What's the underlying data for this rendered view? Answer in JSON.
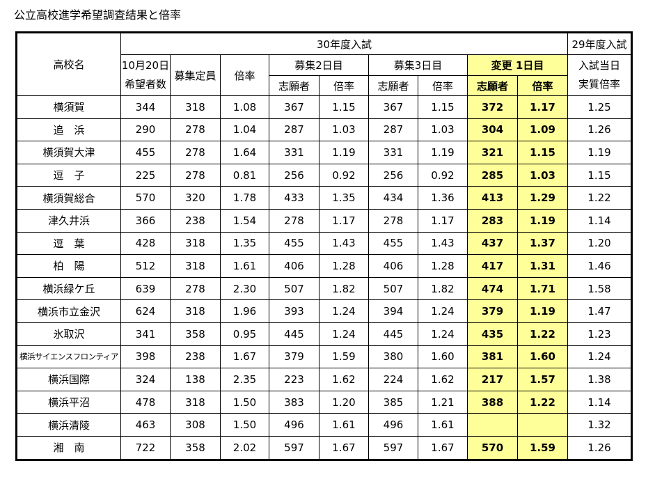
{
  "title": "公立高校進学希望調査結果と倍率",
  "header": {
    "year30": "30年度入試",
    "year29": "29年度入試",
    "school_name": "高校名",
    "oct20_line1": "10月20日",
    "oct20_line2": "希望者数",
    "capacity": "募集定員",
    "ratio": "倍率",
    "day2": "募集2日目",
    "day3": "募集3日目",
    "change_day1": "変更 1日目",
    "applicants": "志願者",
    "ratio_short": "倍率",
    "exam_day_line1": "入試当日",
    "exam_day_line2": "実質倍率"
  },
  "colors": {
    "highlight": "#ffff99",
    "border": "#000000"
  },
  "rows": [
    {
      "school": "横須賀",
      "hope": "344",
      "cap": "318",
      "ratio": "1.08",
      "d2_app": "367",
      "d2_ratio": "1.15",
      "d3_app": "367",
      "d3_ratio": "1.15",
      "ch_app": "372",
      "ch_ratio": "1.17",
      "real": "1.25"
    },
    {
      "school": "追　浜",
      "hope": "290",
      "cap": "278",
      "ratio": "1.04",
      "d2_app": "287",
      "d2_ratio": "1.03",
      "d3_app": "287",
      "d3_ratio": "1.03",
      "ch_app": "304",
      "ch_ratio": "1.09",
      "real": "1.26"
    },
    {
      "school": "横須賀大津",
      "hope": "455",
      "cap": "278",
      "ratio": "1.64",
      "d2_app": "331",
      "d2_ratio": "1.19",
      "d3_app": "331",
      "d3_ratio": "1.19",
      "ch_app": "321",
      "ch_ratio": "1.15",
      "real": "1.19"
    },
    {
      "school": "逗　子",
      "hope": "225",
      "cap": "278",
      "ratio": "0.81",
      "d2_app": "256",
      "d2_ratio": "0.92",
      "d3_app": "256",
      "d3_ratio": "0.92",
      "ch_app": "285",
      "ch_ratio": "1.03",
      "real": "1.15"
    },
    {
      "school": "横須賀総合",
      "hope": "570",
      "cap": "320",
      "ratio": "1.78",
      "d2_app": "433",
      "d2_ratio": "1.35",
      "d3_app": "434",
      "d3_ratio": "1.36",
      "ch_app": "413",
      "ch_ratio": "1.29",
      "real": "1.22"
    },
    {
      "school": "津久井浜",
      "hope": "366",
      "cap": "238",
      "ratio": "1.54",
      "d2_app": "278",
      "d2_ratio": "1.17",
      "d3_app": "278",
      "d3_ratio": "1.17",
      "ch_app": "283",
      "ch_ratio": "1.19",
      "real": "1.14"
    },
    {
      "school": "逗　葉",
      "hope": "428",
      "cap": "318",
      "ratio": "1.35",
      "d2_app": "455",
      "d2_ratio": "1.43",
      "d3_app": "455",
      "d3_ratio": "1.43",
      "ch_app": "437",
      "ch_ratio": "1.37",
      "real": "1.20"
    },
    {
      "school": "柏　陽",
      "hope": "512",
      "cap": "318",
      "ratio": "1.61",
      "d2_app": "406",
      "d2_ratio": "1.28",
      "d3_app": "406",
      "d3_ratio": "1.28",
      "ch_app": "417",
      "ch_ratio": "1.31",
      "real": "1.46"
    },
    {
      "school": "横浜緑ケ丘",
      "hope": "639",
      "cap": "278",
      "ratio": "2.30",
      "d2_app": "507",
      "d2_ratio": "1.82",
      "d3_app": "507",
      "d3_ratio": "1.82",
      "ch_app": "474",
      "ch_ratio": "1.71",
      "real": "1.58"
    },
    {
      "school": "横浜市立金沢",
      "hope": "624",
      "cap": "318",
      "ratio": "1.96",
      "d2_app": "393",
      "d2_ratio": "1.24",
      "d3_app": "394",
      "d3_ratio": "1.24",
      "ch_app": "379",
      "ch_ratio": "1.19",
      "real": "1.47"
    },
    {
      "school": "氷取沢",
      "hope": "341",
      "cap": "358",
      "ratio": "0.95",
      "d2_app": "445",
      "d2_ratio": "1.24",
      "d3_app": "445",
      "d3_ratio": "1.24",
      "ch_app": "435",
      "ch_ratio": "1.22",
      "real": "1.23"
    },
    {
      "school": "横浜サイエンスフロンティア",
      "small": true,
      "hope": "398",
      "cap": "238",
      "ratio": "1.67",
      "d2_app": "379",
      "d2_ratio": "1.59",
      "d3_app": "380",
      "d3_ratio": "1.60",
      "ch_app": "381",
      "ch_ratio": "1.60",
      "real": "1.24"
    },
    {
      "school": "横浜国際",
      "hope": "324",
      "cap": "138",
      "ratio": "2.35",
      "d2_app": "223",
      "d2_ratio": "1.62",
      "d3_app": "224",
      "d3_ratio": "1.62",
      "ch_app": "217",
      "ch_ratio": "1.57",
      "real": "1.38"
    },
    {
      "school": "横浜平沼",
      "hope": "478",
      "cap": "318",
      "ratio": "1.50",
      "d2_app": "383",
      "d2_ratio": "1.20",
      "d3_app": "385",
      "d3_ratio": "1.21",
      "ch_app": "388",
      "ch_ratio": "1.22",
      "real": "1.14"
    },
    {
      "school": "横浜清陵",
      "hope": "463",
      "cap": "308",
      "ratio": "1.50",
      "d2_app": "496",
      "d2_ratio": "1.61",
      "d3_app": "496",
      "d3_ratio": "1.61",
      "ch_app": "",
      "ch_ratio": "",
      "real": "1.32"
    },
    {
      "school": "湘　南",
      "hope": "722",
      "cap": "358",
      "ratio": "2.02",
      "d2_app": "597",
      "d2_ratio": "1.67",
      "d3_app": "597",
      "d3_ratio": "1.67",
      "ch_app": "570",
      "ch_ratio": "1.59",
      "real": "1.26"
    }
  ]
}
